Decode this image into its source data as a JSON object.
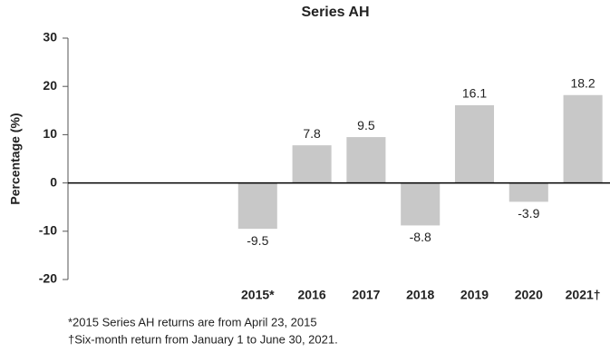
{
  "chart_data": {
    "type": "bar",
    "title": "Series AH",
    "y_label": "Percentage (%)",
    "categories": [
      null,
      null,
      null,
      "2015*",
      "2016",
      "2017",
      "2018",
      "2019",
      "2020",
      "2021†"
    ],
    "values": [
      null,
      null,
      null,
      -9.5,
      7.8,
      9.5,
      -8.8,
      16.1,
      -3.9,
      18.2
    ],
    "color": "#c8c8c8",
    "ylim": [
      -20,
      30
    ],
    "yticks": [
      -20,
      -10,
      0,
      10,
      20,
      30
    ],
    "grid": false,
    "notes": [
      "*2015 Series AH returns are from April 23, 2015",
      "†Six-month return from January 1 to June 30, 2021."
    ]
  }
}
